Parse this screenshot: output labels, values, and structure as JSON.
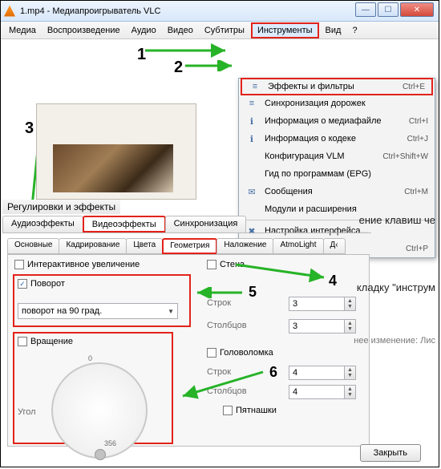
{
  "window": {
    "title": "1.mp4 - Медиапроигрыватель VLC"
  },
  "menubar": [
    "Медиа",
    "Воспроизведение",
    "Аудио",
    "Видео",
    "Субтитры",
    "Инструменты",
    "Вид",
    "?"
  ],
  "menubar_active_idx": 5,
  "dropdown": [
    {
      "icon": "≡",
      "label": "Эффекты и фильтры",
      "sc": "Ctrl+E",
      "hl": true
    },
    {
      "icon": "≡",
      "label": "Синхронизация дорожек",
      "sc": ""
    },
    {
      "icon": "ℹ",
      "label": "Информация о медиафайле",
      "sc": "Ctrl+I"
    },
    {
      "icon": "ℹ",
      "label": "Информация о кодеке",
      "sc": "Ctrl+J"
    },
    {
      "icon": "",
      "label": "Конфигурация VLM",
      "sc": "Ctrl+Shift+W"
    },
    {
      "icon": "",
      "label": "Гид по программам (EPG)",
      "sc": ""
    },
    {
      "icon": "✉",
      "label": "Сообщения",
      "sc": "Ctrl+M"
    },
    {
      "icon": "",
      "label": "Модули и расширения",
      "sc": ""
    },
    {
      "sep": true
    },
    {
      "icon": "✖",
      "label": "Настройка интерфейса...",
      "sc": ""
    },
    {
      "icon": "✖",
      "label": "Настройки",
      "sc": "Ctrl+P"
    }
  ],
  "steps": {
    "1": "1",
    "2": "2",
    "3": "3",
    "4": "4",
    "5": "5",
    "6": "6"
  },
  "fx_window_title": "Регулировки и эффекты",
  "tabs1": [
    "Аудиоэффекты",
    "Видеоэффекты",
    "Синхронизация"
  ],
  "tabs1_sel": 1,
  "tabs2": [
    "Основные",
    "Кадрирование",
    "Цвета",
    "Геометрия",
    "Наложение",
    "AtmoLight",
    "Д‹"
  ],
  "tabs2_sel": 3,
  "panel": {
    "interactive_zoom": "Интерактивное увеличение",
    "rotate_chk": "Поворот",
    "rotate_combo": "поворот на 90 град.",
    "rotation_chk": "Вращение",
    "angle": "Угол",
    "angle_min": "0",
    "angle_max": "356",
    "wall": "Стена",
    "rows": "Строк",
    "cols": "Столбцов",
    "puzzle": "Головоломка",
    "pyat": "Пятнашки",
    "v3": "3",
    "v4": "4"
  },
  "close": "Закрыть",
  "side": {
    "a": "ение клавиш че",
    "b": "кладку \"инструм",
    "c": "нее изменение: Лис"
  },
  "colors": {
    "red": "#e2231a",
    "green": "#27b327"
  }
}
